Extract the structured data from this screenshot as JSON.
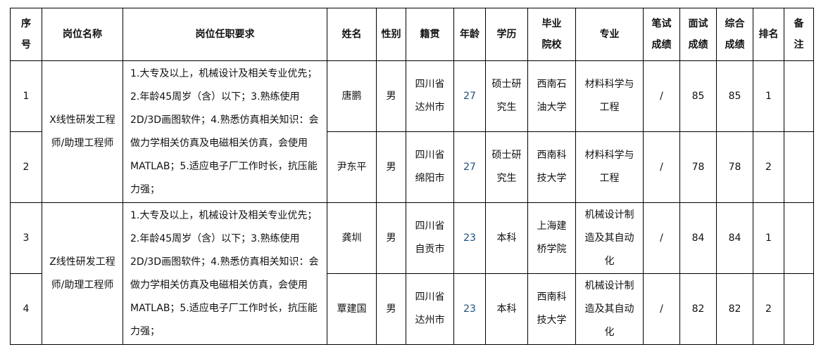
{
  "table": {
    "columns": [
      "序号",
      "岗位名称",
      "岗位任职要求",
      "姓名",
      "性别",
      "籍贯",
      "年龄",
      "学历",
      "毕业院校",
      "专业",
      "笔试成绩",
      "面试成绩",
      "综合成绩",
      "排名",
      "备注"
    ],
    "groups": [
      {
        "position": "X线性研发工程师/助理工程师",
        "requirements": "1.大专及以上，机械设计及相关专业优先；2.年龄45周岁（含）以下；3.熟练使用2D/3D画图软件；4.熟悉仿真相关知识：会做力学相关仿真及电磁相关仿真，会使用MATLAB；5.适应电子厂工作时长，抗压能力强；",
        "rows": [
          {
            "no": "1",
            "name": "唐鹏",
            "gender": "男",
            "hometown": "四川省达州市",
            "age": "27",
            "education": "硕士研究生",
            "school": "西南石油大学",
            "major": "材料科学与工程",
            "written_score": "/",
            "interview_score": "85",
            "overall_score": "85",
            "rank": "1",
            "remark": ""
          },
          {
            "no": "2",
            "name": "尹东平",
            "gender": "男",
            "hometown": "四川省绵阳市",
            "age": "27",
            "education": "硕士研究生",
            "school": "西南科技大学",
            "major": "材料科学与工程",
            "written_score": "/",
            "interview_score": "78",
            "overall_score": "78",
            "rank": "2",
            "remark": ""
          }
        ]
      },
      {
        "position": "Z线性研发工程师/助理工程师",
        "requirements": "1.大专及以上，机械设计及相关专业优先；2.年龄45周岁（含）以下；3.熟练使用2D/3D画图软件；4.熟悉仿真相关知识：会做力学相关仿真及电磁相关仿真，会使用MATLAB；5.适应电子厂工作时长，抗压能力强；",
        "rows": [
          {
            "no": "3",
            "name": "龚圳",
            "gender": "男",
            "hometown": "四川省自贡市",
            "age": "23",
            "education": "本科",
            "school": "上海建桥学院",
            "major": "机械设计制造及其自动化",
            "written_score": "/",
            "interview_score": "84",
            "overall_score": "84",
            "rank": "1",
            "remark": ""
          },
          {
            "no": "4",
            "name": "覃建国",
            "gender": "男",
            "hometown": "四川省达州市",
            "age": "23",
            "education": "本科",
            "school": "西南科技大学",
            "major": "机械设计制造及其自动化",
            "written_score": "/",
            "interview_score": "82",
            "overall_score": "82",
            "rank": "2",
            "remark": ""
          }
        ]
      }
    ]
  },
  "colors": {
    "border": "#000000",
    "text": "#111111",
    "age_accent": "#1f4e79",
    "background": "#ffffff"
  }
}
